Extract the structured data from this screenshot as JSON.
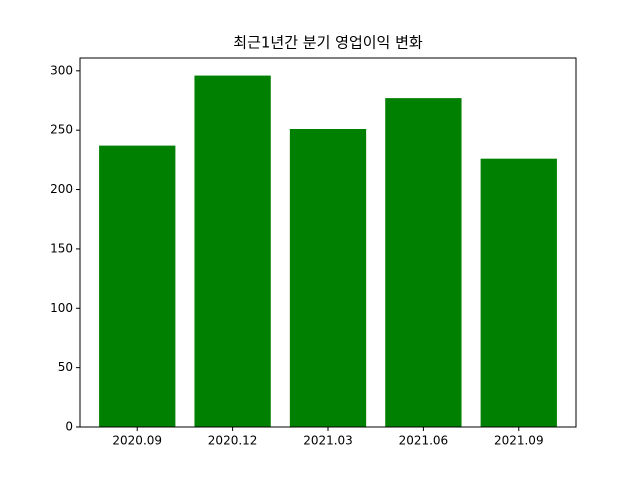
{
  "chart_data": {
    "type": "bar",
    "title": "최근1년간 분기 영업이익 변화",
    "categories": [
      "2020.09",
      "2020.12",
      "2021.03",
      "2021.06",
      "2021.09"
    ],
    "values": [
      237,
      296,
      251,
      277,
      226
    ],
    "color": "#008000",
    "ylim": [
      0,
      310.8
    ],
    "yticks": [
      0,
      50,
      100,
      150,
      200,
      250,
      300
    ],
    "grid": false
  }
}
